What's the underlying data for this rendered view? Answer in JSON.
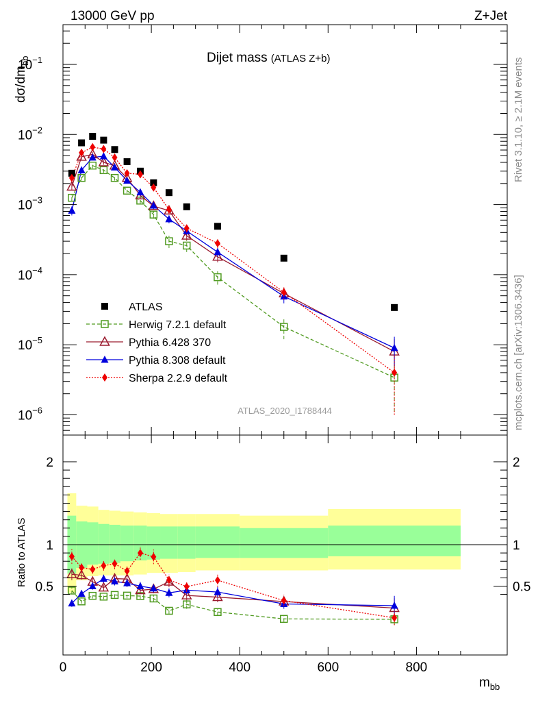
{
  "header": {
    "left": "13000 GeV pp",
    "right": "Z+Jet"
  },
  "side_labels": {
    "rivet": "Rivet 3.1.10, ≥ 2.1M events",
    "mcplots": "mcplots.cern.ch [arXiv:1306.3436]"
  },
  "chart_data": {
    "type": "scatter",
    "title": "Dijet mass",
    "subtitle": "(ATLAS Z+b)",
    "analysis_id": "ATLAS_2020_I1788444",
    "xlabel_main": "m",
    "xlabel_sub": "bb",
    "ylabel_main": "dσ/dm",
    "ylabel_sub": "bb",
    "ratio_ylabel": "Ratio to ATLAS",
    "xlim": [
      0,
      910
    ],
    "ylim": [
      5e-07,
      0.5
    ],
    "yscale": "log",
    "ratio_ylim": [
      0.34,
      2.45
    ],
    "x_ticks": [
      "0",
      "200",
      "400",
      "600",
      "800"
    ],
    "y_ticks": [
      "10",
      "10",
      "10",
      "10",
      "10",
      "10"
    ],
    "y_tick_exponents": [
      "−6",
      "−5",
      "−4",
      "−3",
      "−2",
      "−1"
    ],
    "ratio_ticks": [
      "0.5",
      "1",
      "2"
    ],
    "bins": {
      "edges": [
        10,
        30,
        55,
        80,
        105,
        130,
        160,
        190,
        220,
        260,
        300,
        400,
        600,
        900
      ],
      "x": [
        20,
        42,
        67,
        92,
        117,
        145,
        175,
        205,
        240,
        280,
        350,
        500,
        750
      ]
    },
    "bands": {
      "inner_up": [
        1.35,
        1.28,
        1.27,
        1.25,
        1.24,
        1.23,
        1.23,
        1.22,
        1.22,
        1.22,
        1.22,
        1.2,
        1.23
      ],
      "inner_down": [
        0.65,
        0.72,
        0.76,
        0.77,
        0.78,
        0.8,
        0.81,
        0.82,
        0.83,
        0.83,
        0.84,
        0.84,
        0.86
      ],
      "outer_up": [
        1.62,
        1.47,
        1.46,
        1.42,
        1.41,
        1.4,
        1.39,
        1.38,
        1.37,
        1.37,
        1.37,
        1.35,
        1.43
      ],
      "outer_down": [
        0.42,
        0.57,
        0.62,
        0.63,
        0.63,
        0.63,
        0.64,
        0.66,
        0.66,
        0.67,
        0.69,
        0.69,
        0.7
      ]
    },
    "series": [
      {
        "name": "ATLAS",
        "color": "#000000",
        "marker": "square",
        "values": [
          0.0028,
          0.0076,
          0.0094,
          0.0083,
          0.0061,
          0.0041,
          0.003,
          0.00205,
          0.00148,
          0.00093,
          0.00049,
          0.000172,
          3.4e-05
        ]
      },
      {
        "name": "Herwig 7.2.1 default",
        "color": "#4f9a1f",
        "marker": "open-square",
        "line": "dashed",
        "values": [
          0.00125,
          0.0024,
          0.0036,
          0.0031,
          0.0024,
          0.00158,
          0.00114,
          0.00072,
          0.0003,
          0.00026,
          9.2e-05,
          1.8e-05,
          3.4e-06
        ],
        "errors": [
          0.00012,
          0.0002,
          0.0003,
          0.00025,
          0.0002,
          0.00013,
          0.0001,
          9e-05,
          6e-05,
          5e-05,
          2e-05,
          6e-06,
          2.3e-06
        ]
      },
      {
        "name": "Pythia 6.428 370",
        "color": "#9a1a2e",
        "marker": "open-triangle",
        "line": "solid",
        "values": [
          0.0018,
          0.0048,
          0.0052,
          0.004,
          0.0036,
          0.0024,
          0.00135,
          0.00095,
          0.00082,
          0.00036,
          0.00018,
          5.4e-05,
          8e-06
        ],
        "errors": [
          0.0002,
          0.0004,
          0.0004,
          0.0003,
          0.0003,
          0.0002,
          0.00014,
          0.0001,
          0.0001,
          5e-05,
          3e-05,
          1e-05,
          4e-06
        ]
      },
      {
        "name": "Pythia 8.308 default",
        "color": "#0000dd",
        "marker": "triangle",
        "line": "solid",
        "values": [
          0.00082,
          0.0031,
          0.0047,
          0.0049,
          0.0034,
          0.0022,
          0.0015,
          0.00097,
          0.00062,
          0.00042,
          0.00021,
          4.9e-05,
          9e-06
        ],
        "errors": [
          0.00012,
          0.0003,
          0.0004,
          0.0004,
          0.0003,
          0.0002,
          0.00015,
          0.0001,
          8e-05,
          5e-05,
          3e-05,
          1e-05,
          4e-06
        ]
      },
      {
        "name": "Sherpa 2.2.9 default",
        "color": "#ee0000",
        "marker": "diamond",
        "line": "dotted",
        "values": [
          0.0024,
          0.0055,
          0.0066,
          0.0062,
          0.0047,
          0.0028,
          0.0027,
          0.00175,
          0.00085,
          0.00046,
          0.00028,
          5.6e-05,
          4e-06
        ],
        "errors": [
          0.00025,
          0.0005,
          0.0005,
          0.0005,
          0.0004,
          0.00025,
          0.00025,
          0.00018,
          0.0001,
          6e-05,
          4e-05,
          1.2e-05,
          3e-06
        ]
      }
    ]
  }
}
